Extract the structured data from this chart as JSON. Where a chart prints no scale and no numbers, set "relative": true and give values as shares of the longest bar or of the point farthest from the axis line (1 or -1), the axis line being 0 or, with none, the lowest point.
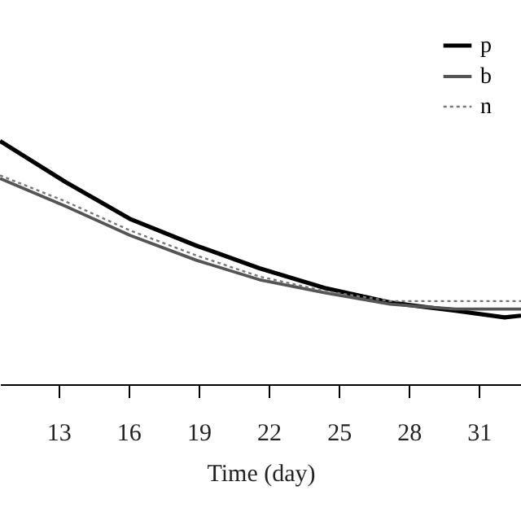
{
  "chart_data": {
    "type": "line",
    "relative": true,
    "xlabel": "Time (day)",
    "xlim": [
      10.5,
      32.8
    ],
    "xticks": [
      13,
      16,
      19,
      22,
      25,
      28,
      31
    ],
    "legend": "top right",
    "marker": "none",
    "series": [
      {
        "name": "p",
        "color": "#000000",
        "line_style": "solid",
        "x": [
          10.5,
          13.3,
          16.1,
          18.9,
          21.6,
          24.4,
          27.2,
          30,
          32.1,
          32.8
        ],
        "values": [
          1,
          0.832,
          0.678,
          0.57,
          0.477,
          0.396,
          0.336,
          0.302,
          0.275,
          0.282
        ]
      },
      {
        "name": "b",
        "color": "#555555",
        "line_style": "solid",
        "x": [
          10.5,
          13.3,
          16.1,
          18.9,
          21.6,
          24.4,
          27.2,
          30,
          32.8
        ],
        "values": [
          0.846,
          0.732,
          0.611,
          0.51,
          0.43,
          0.376,
          0.329,
          0.309,
          0.309
        ]
      },
      {
        "name": "n",
        "color": "#777777",
        "line_style": "dotted",
        "x": [
          10.5,
          13.3,
          16.1,
          18.9,
          21.6,
          24.4,
          27.2,
          30,
          32.8
        ],
        "values": [
          0.859,
          0.752,
          0.631,
          0.53,
          0.443,
          0.383,
          0.342,
          0.342,
          0.342
        ]
      }
    ]
  }
}
